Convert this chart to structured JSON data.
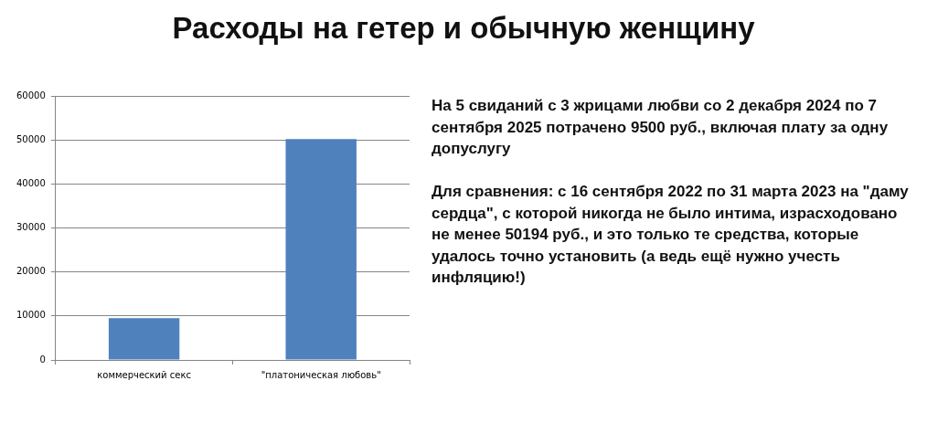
{
  "chart_data": {
    "type": "bar",
    "title": "Расходы на гетер и обычную женщину",
    "categories": [
      "коммерческий секс",
      "\"платоническая любовь\""
    ],
    "values": [
      9500,
      50200
    ],
    "color": "#4f81bd",
    "ylim": [
      0,
      60000
    ],
    "yticks": [
      0,
      10000,
      20000,
      30000,
      40000,
      50000,
      60000
    ],
    "grid": "y",
    "legend": false,
    "annotations": [
      "На 5 свиданий с 3 жрицами любви со 2 декабря 2024 по 7 сентября 2025 потрачено 9500 руб., включая плату за одну допуслугу",
      "Для сравнения: с 16 сентября 2022 по 31 марта 2023 на \"даму сердца\", с которой никогда не было интима, израсходовано не менее 50194 руб., и это только те средства, которые удалось точно установить (а ведь ещё нужно учесть инфляцию!)"
    ]
  }
}
